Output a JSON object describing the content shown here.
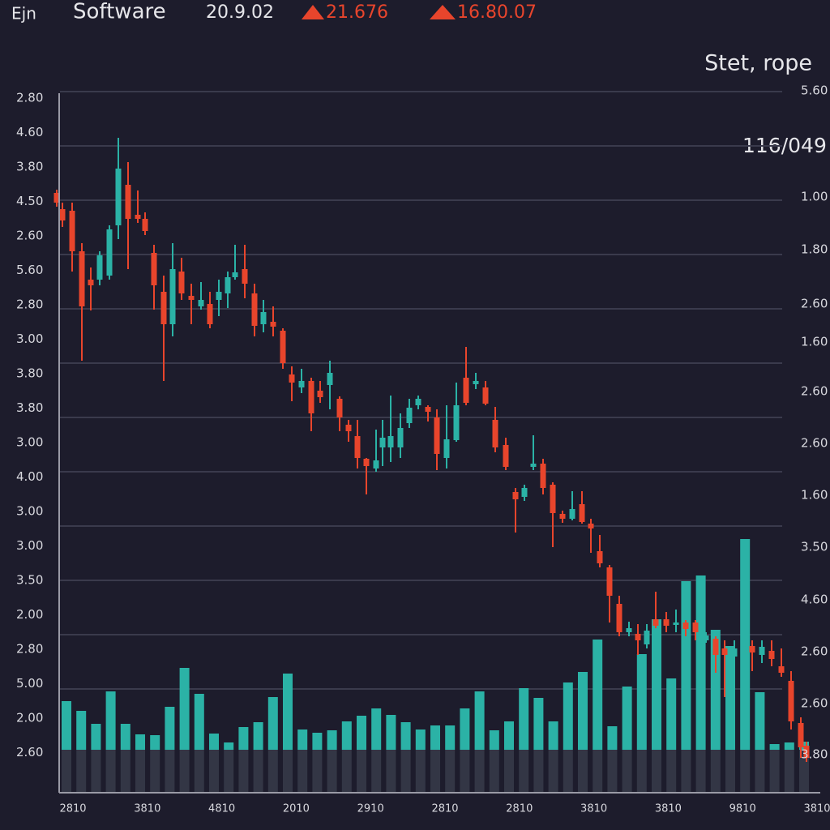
{
  "header": {
    "logo": "Ejn",
    "name": "Software",
    "price": "20.9.02",
    "change_1": "21.676",
    "change_2": "16.80.07"
  },
  "panel": {
    "title": "Stet, rope",
    "value": "116/049"
  },
  "left_axis": [
    "2.80",
    "4.60",
    "3.80",
    "4.50",
    "2.60",
    "5.60",
    "2.80",
    "3.00",
    "3.80",
    "3.80",
    "3.00",
    "4.00",
    "3.00",
    "3.00",
    "3.50",
    "2.00",
    "2.80",
    "5.00",
    "2.00",
    "2.60"
  ],
  "right_axis": [
    "5.60",
    "1.00",
    "1.80",
    "2.60",
    "1.60",
    "2.60",
    "2.60",
    "1.60",
    "3.50",
    "4.60",
    "2.60",
    "2.60",
    "3.80"
  ],
  "x_axis": [
    "2810",
    "3810",
    "4810",
    "2010",
    "2910",
    "2810",
    "2810",
    "3810",
    "3810",
    "9810",
    "3810"
  ]
}
